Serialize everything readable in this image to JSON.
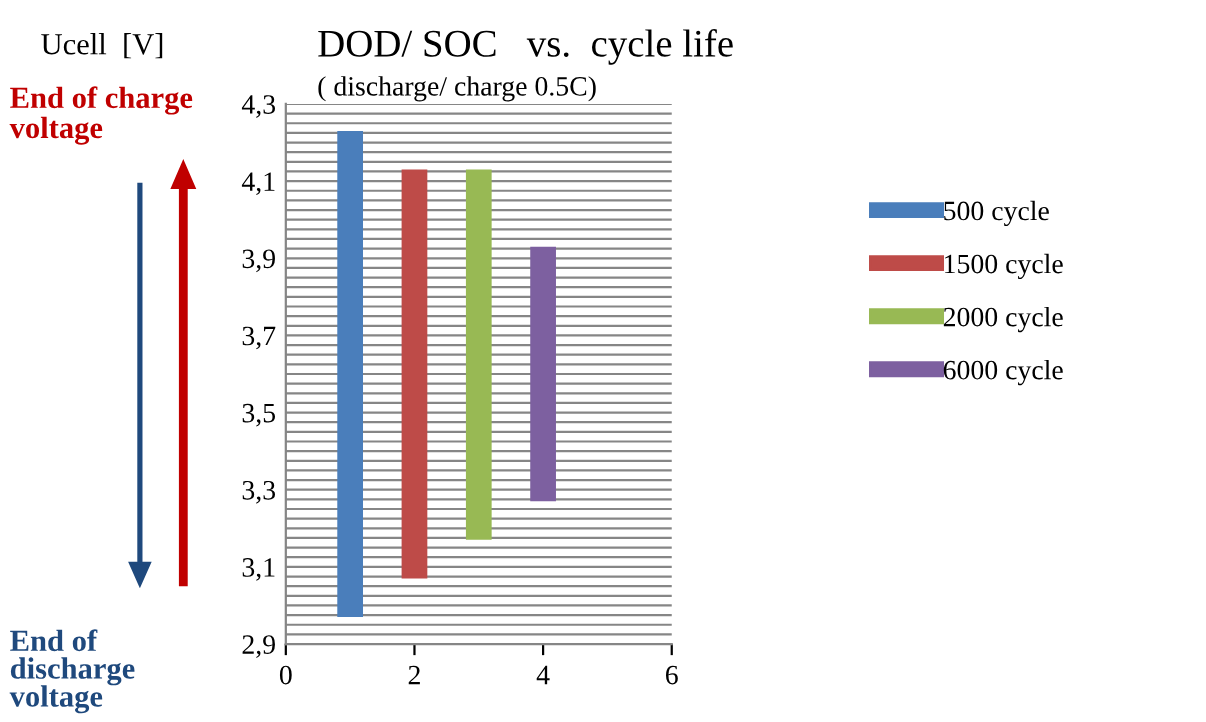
{
  "chart_data": {
    "type": "bar",
    "title": "DOD/ SOC   vs.  cycle life",
    "subtitle": "( discharge/ charge 0.5C)",
    "ylabel": "Ucell  [V]",
    "annotations": [
      "End of charge\nvoltage",
      "End of\ndischarge\nvoltage"
    ],
    "series": [
      {
        "name": "500 cycle",
        "color": "#4a7ebb",
        "x": [
          1
        ],
        "base": [
          2.97
        ],
        "values": [
          1.26
        ]
      },
      {
        "name": "1500 cycle",
        "color": "#be4b48",
        "x": [
          2
        ],
        "base": [
          3.07
        ],
        "values": [
          1.06
        ]
      },
      {
        "name": "2000 cycle",
        "color": "#98b954",
        "x": [
          3
        ],
        "base": [
          3.17
        ],
        "values": [
          0.96
        ]
      },
      {
        "name": "6000 cycle",
        "color": "#7d60a0",
        "x": [
          4
        ],
        "base": [
          3.27
        ],
        "values": [
          0.66
        ]
      }
    ],
    "xlim": [
      0,
      6
    ],
    "xticks": [
      0,
      2,
      4,
      6
    ],
    "ylim": [
      2.9,
      4.3
    ],
    "yticks": [
      {
        "value": 2.9,
        "label": "2,9"
      },
      {
        "value": 2.925,
        "label": null
      },
      {
        "value": 2.95,
        "label": null
      },
      {
        "value": 2.975,
        "label": null
      },
      {
        "value": 3.0,
        "label": null
      },
      {
        "value": 3.025,
        "label": null
      },
      {
        "value": 3.05,
        "label": null
      },
      {
        "value": 3.075,
        "label": null
      },
      {
        "value": 3.1,
        "label": "3,1"
      },
      {
        "value": 3.125,
        "label": null
      },
      {
        "value": 3.15,
        "label": null
      },
      {
        "value": 3.175,
        "label": null
      },
      {
        "value": 3.2,
        "label": null
      },
      {
        "value": 3.225,
        "label": null
      },
      {
        "value": 3.25,
        "label": null
      },
      {
        "value": 3.275,
        "label": null
      },
      {
        "value": 3.3,
        "label": "3,3"
      },
      {
        "value": 3.325,
        "label": null
      },
      {
        "value": 3.35,
        "label": null
      },
      {
        "value": 3.375,
        "label": null
      },
      {
        "value": 3.4,
        "label": null
      },
      {
        "value": 3.425,
        "label": null
      },
      {
        "value": 3.45,
        "label": null
      },
      {
        "value": 3.475,
        "label": null
      },
      {
        "value": 3.5,
        "label": "3,5"
      },
      {
        "value": 3.525,
        "label": null
      },
      {
        "value": 3.55,
        "label": null
      },
      {
        "value": 3.575,
        "label": null
      },
      {
        "value": 3.6,
        "label": null
      },
      {
        "value": 3.625,
        "label": null
      },
      {
        "value": 3.65,
        "label": null
      },
      {
        "value": 3.675,
        "label": null
      },
      {
        "value": 3.7,
        "label": "3,7"
      },
      {
        "value": 3.725,
        "label": null
      },
      {
        "value": 3.75,
        "label": null
      },
      {
        "value": 3.775,
        "label": null
      },
      {
        "value": 3.8,
        "label": null
      },
      {
        "value": 3.825,
        "label": null
      },
      {
        "value": 3.85,
        "label": null
      },
      {
        "value": 3.875,
        "label": null
      },
      {
        "value": 3.9,
        "label": "3,9"
      },
      {
        "value": 3.925,
        "label": null
      },
      {
        "value": 3.95,
        "label": null
      },
      {
        "value": 3.975,
        "label": null
      },
      {
        "value": 4.0,
        "label": null
      },
      {
        "value": 4.025,
        "label": null
      },
      {
        "value": 4.05,
        "label": null
      },
      {
        "value": 4.075,
        "label": null
      },
      {
        "value": 4.1,
        "label": "4,1"
      },
      {
        "value": 4.125,
        "label": null
      },
      {
        "value": 4.15,
        "label": null
      },
      {
        "value": 4.175,
        "label": null
      },
      {
        "value": 4.2,
        "label": null
      },
      {
        "value": 4.225,
        "label": null
      },
      {
        "value": 4.25,
        "label": null
      },
      {
        "value": 4.275,
        "label": null
      },
      {
        "value": 4.3,
        "label": "4,3"
      }
    ],
    "grid": "y",
    "legend": "right"
  }
}
